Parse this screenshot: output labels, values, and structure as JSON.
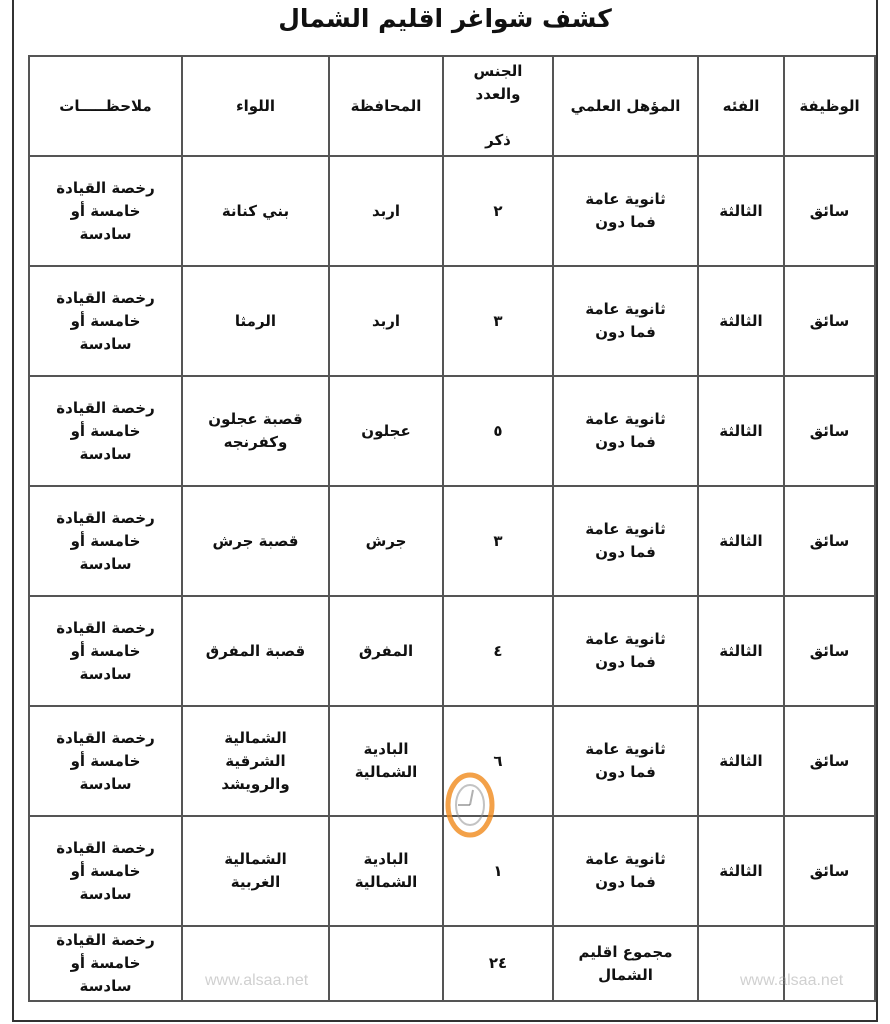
{
  "title": "كشف شواغر اقليم الشمال",
  "headers": {
    "job": "الوظيفة",
    "category": "الفئه",
    "qualification": "المؤهل العلمي",
    "gender_count": "الجنس\nوالعدد\n\nذكر",
    "governorate": "المحافظة",
    "district": "اللواء",
    "notes": "ملاحظـــــات"
  },
  "rows": [
    {
      "job": "سائق",
      "category": "الثالثة",
      "qualification": "ثانوية عامة\nفما دون",
      "count": "٢",
      "governorate": "اربد",
      "district": "بني كنانة",
      "notes": "رخصة القيادة\nخامسة أو\nسادسة"
    },
    {
      "job": "سائق",
      "category": "الثالثة",
      "qualification": "ثانوية عامة\nفما دون",
      "count": "٣",
      "governorate": "اربد",
      "district": "الرمثا",
      "notes": "رخصة القيادة\nخامسة أو\nسادسة"
    },
    {
      "job": "سائق",
      "category": "الثالثة",
      "qualification": "ثانوية عامة\nفما دون",
      "count": "٥",
      "governorate": "عجلون",
      "district": "قصبة عجلون\nوكفرنجه",
      "notes": "رخصة القيادة\nخامسة أو\nسادسة"
    },
    {
      "job": "سائق",
      "category": "الثالثة",
      "qualification": "ثانوية عامة\nفما دون",
      "count": "٣",
      "governorate": "جرش",
      "district": "قصبة جرش",
      "notes": "رخصة القيادة\nخامسة أو\nسادسة"
    },
    {
      "job": "سائق",
      "category": "الثالثة",
      "qualification": "ثانوية عامة\nفما دون",
      "count": "٤",
      "governorate": "المفرق",
      "district": "قصبة المفرق",
      "notes": "رخصة القيادة\nخامسة أو\nسادسة"
    },
    {
      "job": "سائق",
      "category": "الثالثة",
      "qualification": "ثانوية عامة\nفما دون",
      "count": "٦",
      "governorate": "البادية\nالشمالية",
      "district": "الشمالية\nالشرقية\nوالرويشد",
      "notes": "رخصة القيادة\nخامسة أو\nسادسة"
    },
    {
      "job": "سائق",
      "category": "الثالثة",
      "qualification": "ثانوية عامة\nفما دون",
      "count": "١",
      "governorate": "البادية\nالشمالية",
      "district": "الشمالية\nالغربية",
      "notes": "رخصة القيادة\nخامسة أو\nسادسة"
    }
  ],
  "total": {
    "label": "مجموع اقليم\nالشمال",
    "count": "٢٤",
    "notes": "رخصة القيادة\nخامسة أو\nسادسة"
  },
  "watermark": {
    "text": "www.alsaa.net",
    "logo_text": "مدار الساعة"
  }
}
